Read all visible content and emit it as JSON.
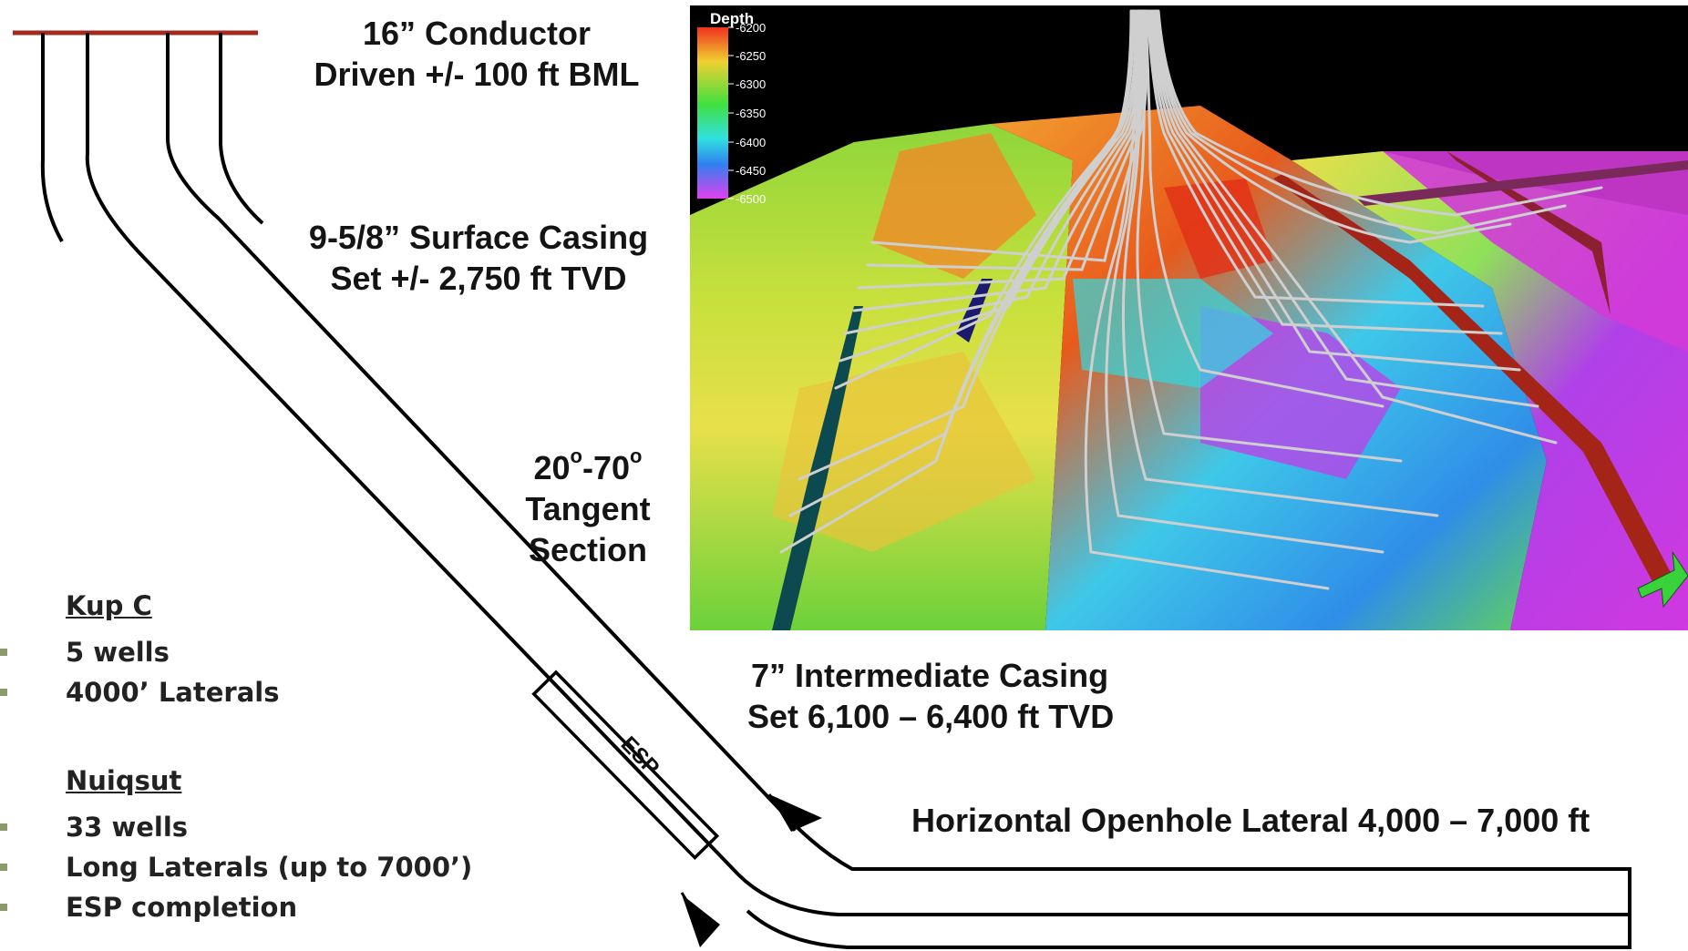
{
  "labels": {
    "conductor_line1": "16”  Conductor",
    "conductor_line2": "Driven +/- 100 ft BML",
    "surface_line1": "9-5/8” Surface Casing",
    "surface_line2": "Set +/- 2,750 ft TVD",
    "tangent_angle_a": "20",
    "tangent_deg_a": "o",
    "tangent_angle_b": "-70",
    "tangent_deg_b": "o",
    "tangent_line2": "Tangent",
    "tangent_line3": "Section",
    "intermediate_line1": "7” Intermediate Casing",
    "intermediate_line2": "Set 6,100 – 6,400 ft TVD",
    "lateral": "Horizontal Openhole Lateral 4,000 – 7,000 ft",
    "esp": "ESP"
  },
  "kup_c": {
    "title": "Kup C",
    "items": [
      "5 wells",
      "4000’ Laterals"
    ]
  },
  "nuiqsut": {
    "title": "Nuiqsut",
    "items": [
      "33 wells",
      "Long Laterals (up to 7000’)",
      "ESP completion"
    ]
  },
  "depth_map": {
    "legend_title": "Depth",
    "ticks": [
      "-6200",
      "-6250",
      "-6300",
      "-6350",
      "-6400",
      "-6450",
      "-6500"
    ]
  },
  "colors": {
    "conductor_bar": "#a52a1e",
    "well_line": "#000000",
    "bullet": "#8a9a6a"
  }
}
